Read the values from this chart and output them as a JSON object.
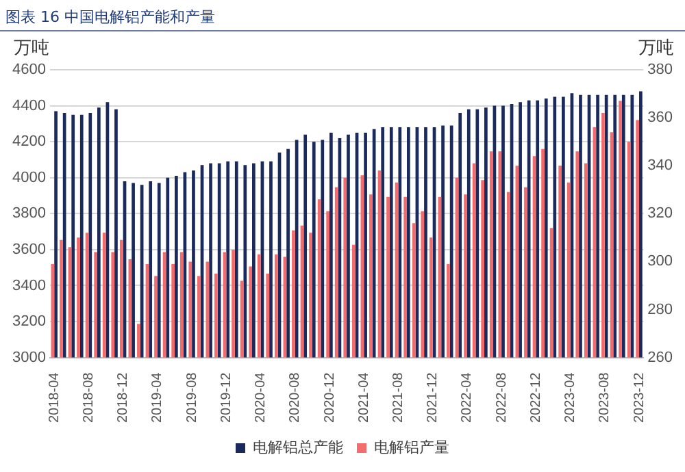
{
  "chart_data": {
    "type": "bar",
    "title": "图表 16 中国电解铝产能和产量",
    "ylabel": "万吨",
    "y2label": "万吨",
    "categories": [
      "2018-04",
      null,
      null,
      null,
      "2018-08",
      null,
      null,
      null,
      "2018-12",
      null,
      null,
      null,
      "2019-04",
      null,
      null,
      null,
      "2019-08",
      null,
      null,
      null,
      "2019-12",
      null,
      null,
      null,
      "2020-04",
      null,
      null,
      null,
      "2020-08",
      null,
      null,
      null,
      "2020-12",
      null,
      null,
      null,
      "2021-04",
      null,
      null,
      null,
      "2021-08",
      null,
      null,
      null,
      "2021-12",
      null,
      null,
      null,
      "2022-04",
      null,
      null,
      null,
      "2022-08",
      null,
      null,
      null,
      "2022-12",
      null,
      null,
      null,
      "2023-04",
      null,
      null,
      null,
      "2023-08",
      null,
      null,
      null,
      "2023-12"
    ],
    "series": [
      {
        "name": "电解铝总产能",
        "color": "#1b2a5c",
        "values": [
          4370,
          4360,
          4350,
          4350,
          4360,
          4390,
          4420,
          4380,
          3980,
          3970,
          3960,
          3980,
          3970,
          4000,
          4010,
          4030,
          4040,
          4070,
          4080,
          4080,
          4090,
          4090,
          4070,
          4080,
          4090,
          4090,
          4140,
          4160,
          4210,
          4240,
          4200,
          4210,
          4250,
          4220,
          4240,
          4250,
          4250,
          4270,
          4280,
          4280,
          4280,
          4280,
          4280,
          4280,
          4280,
          4290,
          4290,
          4360,
          4380,
          4380,
          4390,
          4400,
          4400,
          4410,
          4420,
          4430,
          4430,
          4440,
          4450,
          4450,
          4470,
          4460,
          4460,
          4460,
          4460,
          4460,
          4460,
          4460,
          4480
        ]
      },
      {
        "name": "电解铝产量",
        "color": "#f26b6d",
        "axis": "y2",
        "values": [
          299,
          309,
          306,
          310,
          312,
          304,
          312,
          304,
          309,
          301,
          274,
          299,
          294,
          304,
          299,
          304,
          300,
          294,
          300,
          295,
          304,
          305,
          292,
          298,
          303,
          295,
          303,
          302,
          313,
          315,
          312,
          326,
          321,
          331,
          335,
          307,
          336,
          328,
          338,
          327,
          333,
          327,
          316,
          321,
          310,
          327,
          299,
          335,
          328,
          341,
          334,
          346,
          346,
          329,
          340,
          331,
          344,
          347,
          314,
          340,
          333,
          346,
          341,
          356,
          362,
          354,
          367,
          350,
          359
        ]
      }
    ],
    "ylim": [
      3000,
      4600
    ],
    "yticks": [
      3000,
      3200,
      3400,
      3600,
      3800,
      4000,
      4200,
      4400,
      4600
    ],
    "y2lim": [
      260,
      380
    ],
    "y2ticks": [
      260,
      280,
      300,
      320,
      340,
      360,
      380
    ],
    "grid": "y",
    "legend": "bottom"
  }
}
